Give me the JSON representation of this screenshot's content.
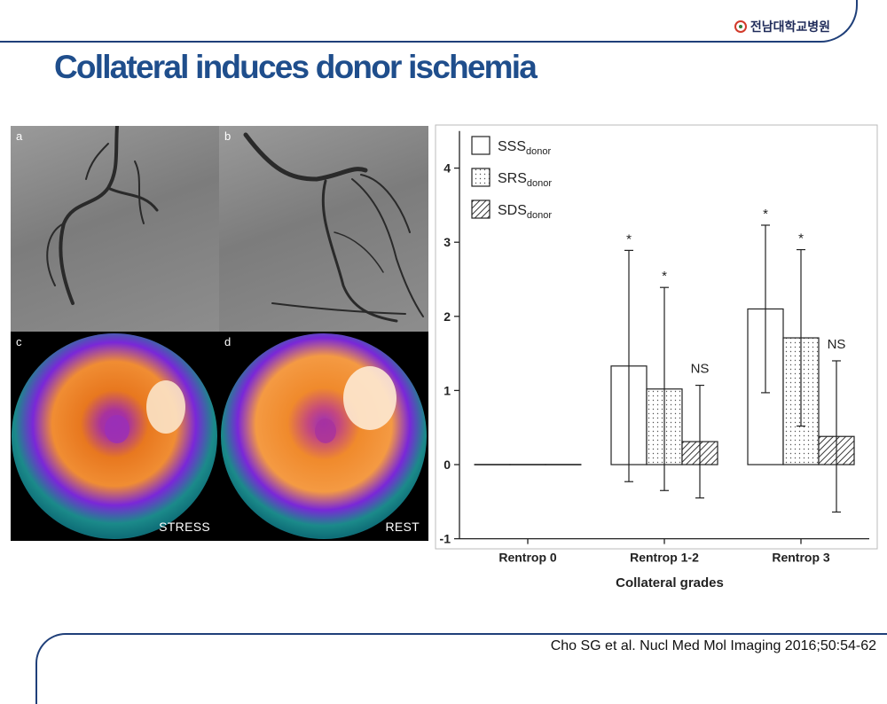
{
  "header": {
    "logo_text": "전남대학교병원",
    "title": "Collateral induces donor ischemia"
  },
  "figure_panels": [
    {
      "label": "a",
      "caption": ""
    },
    {
      "label": "b",
      "caption": ""
    },
    {
      "label": "c",
      "caption": "STRESS"
    },
    {
      "label": "d",
      "caption": "REST"
    }
  ],
  "chart_data": {
    "type": "bar",
    "title": "",
    "xlabel": "Collateral grades",
    "ylabel": "",
    "ylim": [
      -1,
      4.5
    ],
    "yticks": [
      -1,
      0,
      1,
      2,
      3,
      4
    ],
    "categories": [
      "Rentrop 0",
      "Rentrop 1-2",
      "Rentrop 3"
    ],
    "legend_position": "top-left",
    "grid": false,
    "series": [
      {
        "name": "SSS",
        "subscript": "donor",
        "pattern": "open",
        "values": [
          0,
          1.33,
          2.1
        ],
        "error": [
          0,
          1.56,
          1.13
        ],
        "annotations": [
          "",
          "*",
          "*"
        ]
      },
      {
        "name": "SRS",
        "subscript": "donor",
        "pattern": "dotted",
        "values": [
          0,
          1.02,
          1.71
        ],
        "error": [
          0,
          1.37,
          1.19
        ],
        "annotations": [
          "",
          "*",
          "*"
        ]
      },
      {
        "name": "SDS",
        "subscript": "donor",
        "pattern": "hatched",
        "values": [
          0,
          0.31,
          0.38
        ],
        "error": [
          0,
          0.76,
          1.02
        ],
        "annotations": [
          "",
          "NS",
          "NS"
        ]
      }
    ]
  },
  "footer": {
    "citation": "Cho SG  et al. Nucl Med Mol Imaging 2016;50:54-62"
  }
}
